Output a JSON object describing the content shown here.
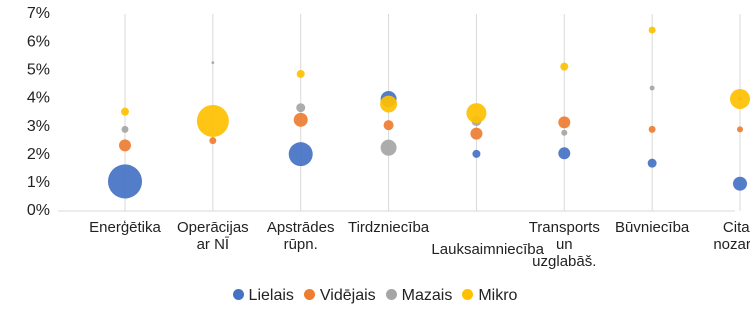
{
  "chart_data": {
    "type": "bubble",
    "categories": [
      "Enerģētika",
      "Operācijas\nar NĪ",
      "Apstrādes\nrūpn.",
      "Tirdzniecība",
      "Lauksaimniecība",
      "Transports\nun\nuzglabāš.",
      "Būvniecība",
      "Citas\nnozares"
    ],
    "series": [
      {
        "name": "Lielais",
        "color": "#4472c4",
        "values": [
          1.05,
          null,
          2.02,
          3.98,
          2.03,
          2.05,
          1.7,
          0.97
        ],
        "sizes": [
          290,
          null,
          144,
          64,
          16,
          36,
          20,
          49
        ]
      },
      {
        "name": "Vidējais",
        "color": "#ed7d31",
        "values": [
          2.33,
          2.5,
          3.24,
          3.05,
          2.75,
          3.15,
          2.9,
          2.9
        ],
        "sizes": [
          36,
          12,
          49,
          25,
          36,
          36,
          12,
          9
        ]
      },
      {
        "name": "Mazais",
        "color": "#a5a5a5",
        "values": [
          2.9,
          5.27,
          3.67,
          2.25,
          3.2,
          2.78,
          4.37,
          4.0
        ],
        "sizes": [
          12,
          2,
          20,
          64,
          25,
          9,
          6,
          4
        ]
      },
      {
        "name": "Mikro",
        "color": "#ffc000",
        "values": [
          3.53,
          3.2,
          4.87,
          3.8,
          3.48,
          5.13,
          6.43,
          3.98
        ],
        "sizes": [
          16,
          256,
          16,
          72,
          100,
          16,
          12,
          100
        ]
      }
    ],
    "ylim": [
      0,
      7
    ],
    "yticks": [
      {
        "value": 0,
        "label": "0%"
      },
      {
        "value": 1,
        "label": "1%"
      },
      {
        "value": 2,
        "label": "2%"
      },
      {
        "value": 3,
        "label": "3%"
      },
      {
        "value": 4,
        "label": "4%"
      },
      {
        "value": 5,
        "label": "5%"
      },
      {
        "value": 6,
        "label": "6%"
      },
      {
        "value": 7,
        "label": "7%"
      }
    ],
    "grid": true,
    "legend": "bottom"
  }
}
